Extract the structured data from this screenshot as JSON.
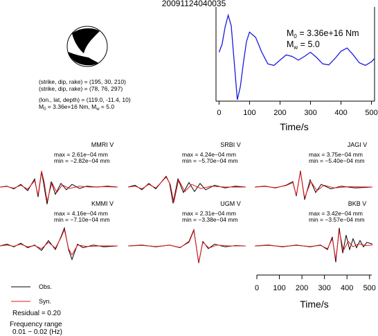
{
  "title": "20091124040035",
  "focal_info": {
    "np1": "(strike, dip, rake) = (195, 30, 210)",
    "np2": "(strike, dip, rake) = (78, 76, 297)",
    "location": "(lon., lat, depth) = (119.0, -11.4, 10)",
    "moment_text": "M",
    "m0_sub": "0",
    "m0_value": " = 3.36e+16 Nm, M",
    "mw_sub": "w",
    "mw_value": " = 5.0"
  },
  "stf_labels": {
    "m0_main": "M",
    "m0_sub": "0",
    "m0_value": " = 3.36e+16 Nm",
    "mw_main": "M",
    "mw_sub": "w",
    "mw_value": " = 5.0"
  },
  "legend": {
    "obs": "Obs.",
    "syn": "Syn.",
    "obs_color": "#000000",
    "syn_color": "#e8141e"
  },
  "residual": "Residual = 0.20",
  "freq_label": "Frequency range",
  "freq_value": "0.01 − 0.02 (Hz)",
  "colors": {
    "stf": "#1a1adc",
    "obs": "#000000",
    "syn": "#e8141e"
  },
  "chart_data": [
    {
      "type": "line",
      "name": "source-time-function",
      "xlabel": "Time/s",
      "ylabel": "",
      "xlim": [
        -10,
        510
      ],
      "xticks": [
        0,
        100,
        200,
        300,
        400,
        500
      ],
      "grid": false,
      "series": [
        {
          "name": "",
          "x": [
            0,
            10,
            20,
            30,
            40,
            50,
            60,
            70,
            80,
            90,
            100,
            120,
            140,
            160,
            180,
            200,
            220,
            240,
            260,
            280,
            300,
            320,
            340,
            360,
            380,
            400,
            420,
            440,
            460,
            480,
            500,
            510
          ],
          "y": [
            0.3,
            0.45,
            0.78,
            1.0,
            0.8,
            0.1,
            -0.6,
            -0.35,
            0.1,
            0.5,
            0.68,
            0.58,
            0.3,
            0.08,
            0.05,
            0.15,
            0.25,
            0.22,
            0.15,
            0.22,
            0.3,
            0.2,
            0.08,
            0.06,
            0.18,
            0.32,
            0.38,
            0.25,
            0.1,
            0.05,
            0.12,
            0.18
          ]
        }
      ]
    },
    {
      "type": "line",
      "name": "waveforms",
      "xlabel": "Time/s",
      "ylabel": "",
      "xlim": [
        0,
        510
      ],
      "xticks": [
        0,
        100,
        200,
        300,
        400,
        500
      ],
      "stations": [
        {
          "label": "MMRI V",
          "max": "max = 2.61e−04 mm",
          "min": "min = −2.82e−04 mm",
          "obs": [
            [
              0,
              0
            ],
            [
              10,
              0.05
            ],
            [
              20,
              -0.1
            ],
            [
              30,
              0.15
            ],
            [
              40,
              -0.2
            ],
            [
              50,
              0.45
            ],
            [
              55,
              -0.55
            ],
            [
              60,
              0.85
            ],
            [
              63,
              0.2
            ],
            [
              68,
              -0.95
            ],
            [
              74,
              0.3
            ],
            [
              80,
              -0.4
            ],
            [
              88,
              0.2
            ],
            [
              96,
              -0.15
            ],
            [
              104,
              0.15
            ],
            [
              115,
              -0.08
            ],
            [
              125,
              0.05
            ],
            [
              140,
              0
            ],
            [
              155,
              0.05
            ],
            [
              170,
              0
            ]
          ],
          "syn": [
            [
              0,
              0
            ],
            [
              10,
              0.03
            ],
            [
              20,
              -0.06
            ],
            [
              30,
              0.1
            ],
            [
              40,
              -0.12
            ],
            [
              50,
              0.35
            ],
            [
              55,
              -0.45
            ],
            [
              60,
              0.9
            ],
            [
              64,
              0.25
            ],
            [
              68,
              -0.8
            ],
            [
              75,
              0.25
            ],
            [
              82,
              -0.3
            ],
            [
              90,
              0.12
            ],
            [
              100,
              -0.08
            ],
            [
              115,
              0.05
            ],
            [
              130,
              0
            ],
            [
              150,
              0.02
            ],
            [
              170,
              0
            ]
          ]
        },
        {
          "label": "SRBI V",
          "max": "max = 4.24e−04 mm",
          "min": "min = −5.70e−04 mm",
          "obs": [
            [
              0,
              0
            ],
            [
              10,
              0.1
            ],
            [
              20,
              -0.15
            ],
            [
              30,
              0.2
            ],
            [
              40,
              -0.1
            ],
            [
              55,
              0.6
            ],
            [
              60,
              0.2
            ],
            [
              65,
              -0.9
            ],
            [
              72,
              0.45
            ],
            [
              80,
              -0.3
            ],
            [
              88,
              0.25
            ],
            [
              96,
              -0.25
            ],
            [
              104,
              0.2
            ],
            [
              112,
              -0.15
            ],
            [
              125,
              0.1
            ],
            [
              140,
              -0.05
            ],
            [
              155,
              0.05
            ],
            [
              170,
              0
            ]
          ],
          "syn": [
            [
              0,
              0
            ],
            [
              10,
              0.05
            ],
            [
              20,
              -0.1
            ],
            [
              30,
              0.15
            ],
            [
              40,
              -0.05
            ],
            [
              55,
              0.55
            ],
            [
              61,
              0.15
            ],
            [
              66,
              -0.85
            ],
            [
              73,
              0.4
            ],
            [
              82,
              -0.25
            ],
            [
              92,
              0.15
            ],
            [
              105,
              -0.08
            ],
            [
              120,
              0.05
            ],
            [
              140,
              0
            ],
            [
              170,
              0
            ]
          ]
        },
        {
          "label": "JAGI V",
          "max": "max = 3.75e−04 mm",
          "min": "min = −5.40e−04 mm",
          "obs": [
            [
              0,
              0
            ],
            [
              15,
              0.05
            ],
            [
              30,
              -0.05
            ],
            [
              45,
              0.1
            ],
            [
              55,
              0.3
            ],
            [
              60,
              -0.5
            ],
            [
              66,
              0.9
            ],
            [
              72,
              -0.7
            ],
            [
              80,
              0.4
            ],
            [
              88,
              -0.3
            ],
            [
              96,
              0.15
            ],
            [
              110,
              -0.1
            ],
            [
              125,
              0.05
            ],
            [
              145,
              -0.05
            ],
            [
              170,
              0
            ]
          ],
          "syn": [
            [
              0,
              0
            ],
            [
              15,
              0.03
            ],
            [
              30,
              -0.03
            ],
            [
              45,
              0.08
            ],
            [
              55,
              0.25
            ],
            [
              60,
              -0.45
            ],
            [
              66,
              0.85
            ],
            [
              72,
              -0.6
            ],
            [
              81,
              0.3
            ],
            [
              90,
              -0.2
            ],
            [
              100,
              0.1
            ],
            [
              115,
              -0.05
            ],
            [
              135,
              0.02
            ],
            [
              170,
              0
            ]
          ]
        },
        {
          "label": "KMMI V",
          "max": "max = 4.16e−04 mm",
          "min": "min = −7.10e−04 mm",
          "obs": [
            [
              0,
              0
            ],
            [
              10,
              0.1
            ],
            [
              20,
              -0.05
            ],
            [
              30,
              0.15
            ],
            [
              40,
              -0.1
            ],
            [
              50,
              0.05
            ],
            [
              60,
              -0.25
            ],
            [
              70,
              0.3
            ],
            [
              80,
              -0.2
            ],
            [
              88,
              0.5
            ],
            [
              93,
              1.0
            ],
            [
              99,
              -0.2
            ],
            [
              104,
              -0.75
            ],
            [
              112,
              0.1
            ],
            [
              120,
              -0.1
            ],
            [
              135,
              0.05
            ],
            [
              150,
              -0.05
            ],
            [
              170,
              0
            ]
          ],
          "syn": [
            [
              0,
              0
            ],
            [
              10,
              0.05
            ],
            [
              20,
              -0.02
            ],
            [
              30,
              0.1
            ],
            [
              40,
              -0.05
            ],
            [
              50,
              0.02
            ],
            [
              60,
              -0.15
            ],
            [
              70,
              0.2
            ],
            [
              80,
              -0.12
            ],
            [
              88,
              0.45
            ],
            [
              93,
              0.9
            ],
            [
              99,
              -0.15
            ],
            [
              104,
              -0.5
            ],
            [
              112,
              0.05
            ],
            [
              125,
              -0.03
            ],
            [
              145,
              0
            ],
            [
              170,
              0
            ]
          ]
        },
        {
          "label": "UGM V",
          "max": "max = 2.31e−04 mm",
          "min": "min = −3.38e−04 mm",
          "obs": [
            [
              0,
              0
            ],
            [
              20,
              0.05
            ],
            [
              40,
              -0.05
            ],
            [
              60,
              0.05
            ],
            [
              75,
              -0.1
            ],
            [
              88,
              0.25
            ],
            [
              95,
              0.9
            ],
            [
              102,
              -0.95
            ],
            [
              108,
              0.25
            ],
            [
              116,
              -0.15
            ],
            [
              125,
              0.1
            ],
            [
              140,
              -0.05
            ],
            [
              155,
              0.02
            ],
            [
              170,
              0
            ]
          ],
          "syn": [
            [
              0,
              0
            ],
            [
              20,
              0.03
            ],
            [
              40,
              -0.03
            ],
            [
              60,
              0.04
            ],
            [
              75,
              -0.08
            ],
            [
              88,
              0.2
            ],
            [
              95,
              0.85
            ],
            [
              102,
              -0.9
            ],
            [
              108,
              0.2
            ],
            [
              117,
              -0.12
            ],
            [
              128,
              0.05
            ],
            [
              145,
              0
            ],
            [
              170,
              0
            ]
          ]
        },
        {
          "label": "BKB V",
          "max": "max = 3.42e−04 mm",
          "min": "min = −3.57e−04 mm",
          "obs": [
            [
              0,
              0
            ],
            [
              20,
              0.05
            ],
            [
              40,
              -0.05
            ],
            [
              60,
              0.05
            ],
            [
              80,
              -0.05
            ],
            [
              95,
              0.05
            ],
            [
              105,
              -0.2
            ],
            [
              112,
              0.5
            ],
            [
              117,
              -0.9
            ],
            [
              122,
              1.0
            ],
            [
              127,
              -0.4
            ],
            [
              132,
              0.6
            ],
            [
              137,
              -0.2
            ],
            [
              142,
              0.4
            ],
            [
              147,
              -0.1
            ],
            [
              152,
              0.3
            ],
            [
              157,
              -0.05
            ],
            [
              162,
              0.2
            ],
            [
              170,
              0.1
            ]
          ],
          "syn": [
            [
              0,
              0
            ],
            [
              20,
              0.03
            ],
            [
              40,
              -0.03
            ],
            [
              60,
              0.03
            ],
            [
              80,
              -0.03
            ],
            [
              95,
              0.03
            ],
            [
              105,
              -0.15
            ],
            [
              112,
              0.4
            ],
            [
              117,
              -0.75
            ],
            [
              122,
              0.85
            ],
            [
              128,
              -0.25
            ],
            [
              135,
              0.25
            ],
            [
              142,
              -0.05
            ],
            [
              150,
              0.12
            ],
            [
              160,
              0.02
            ],
            [
              170,
              0.05
            ]
          ]
        }
      ]
    }
  ]
}
